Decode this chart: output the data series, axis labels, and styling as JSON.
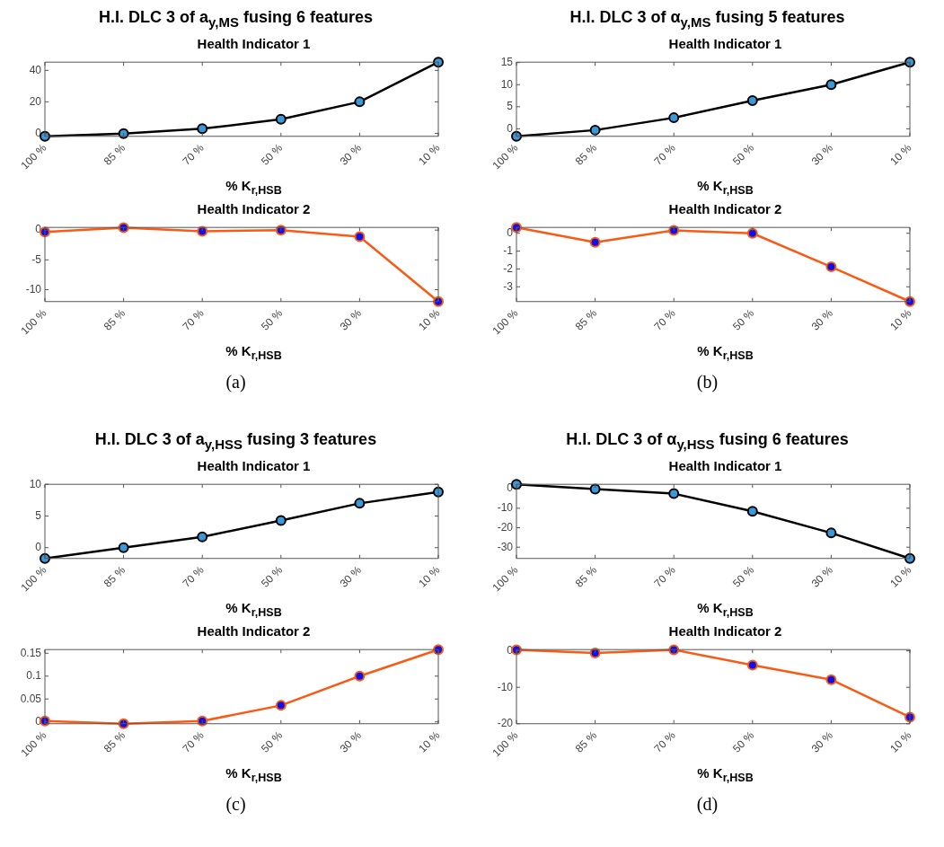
{
  "chart_data": [
    {
      "type": "line",
      "title": "H.I. DLC 3 of  a$_{y,MS}$ fusing 6 features",
      "subtitle": "Health Indicator 1",
      "xlabel": "% K$_{r,HSB}$",
      "categories": [
        "100 %",
        "85 %",
        "70 %",
        "50 %",
        "30 %",
        "10 %"
      ],
      "series": [
        {
          "color": "#000000",
          "values": [
            -1.9,
            -0.2,
            2.9,
            8.9,
            20,
            45.2
          ]
        }
      ],
      "ylim": [
        -1.9,
        45.2
      ],
      "yticks": [
        0,
        20,
        40
      ],
      "grid": false,
      "legend": false,
      "marker": "circle",
      "line_style": "solid"
    },
    {
      "type": "line",
      "title": "Health Indicator 2",
      "xlabel": "% K$_{r,HSB}$",
      "annotations": [
        "(a)"
      ],
      "categories": [
        "100 %",
        "85 %",
        "70 %",
        "50 %",
        "30 %",
        "10 %"
      ],
      "series": [
        {
          "color": "#fa5a14",
          "values": [
            -0.3,
            0.4,
            -0.2,
            0,
            -1.1,
            -12
          ]
        }
      ],
      "ylim": [
        -12,
        0.45
      ],
      "yticks": [
        -10,
        -5,
        0
      ],
      "grid": false,
      "legend": false,
      "marker": "circle",
      "line_style": "solid"
    },
    {
      "type": "line",
      "title": "H.I. DLC 3 of  α$_{y,MS}$ fusing 5 features",
      "subtitle": "Health Indicator 1",
      "xlabel": "% K$_{r,HSB}$",
      "categories": [
        "100 %",
        "85 %",
        "70 %",
        "50 %",
        "30 %",
        "10 %"
      ],
      "series": [
        {
          "color": "#000000",
          "values": [
            -1.7,
            -0.3,
            2.5,
            6.4,
            10,
            15.1
          ]
        }
      ],
      "ylim": [
        -1.7,
        15.1
      ],
      "yticks": [
        0,
        5,
        10,
        15
      ],
      "grid": false,
      "legend": false,
      "marker": "circle",
      "line_style": "solid"
    },
    {
      "type": "line",
      "title": "Health Indicator 2",
      "xlabel": "% K$_{r,HSB}$",
      "annotations": [
        "(b)"
      ],
      "categories": [
        "100 %",
        "85 %",
        "70 %",
        "50 %",
        "30 %",
        "10 %"
      ],
      "series": [
        {
          "color": "#fa5a14",
          "values": [
            0.33,
            -0.5,
            0.16,
            0,
            -1.88,
            -3.83
          ]
        }
      ],
      "ylim": [
        -3.83,
        0.33
      ],
      "yticks": [
        -3,
        -2,
        -1,
        0
      ],
      "grid": false,
      "legend": false,
      "marker": "circle",
      "line_style": "solid"
    },
    {
      "type": "line",
      "title": "H.I. DLC 3 of  a$_{y,HSS}$ fusing 3 features",
      "subtitle": "Health Indicator 1",
      "xlabel": "% K$_{r,HSB}$",
      "categories": [
        "100 %",
        "85 %",
        "70 %",
        "50 %",
        "30 %",
        "10 %"
      ],
      "series": [
        {
          "color": "#000000",
          "values": [
            -1.7,
            0,
            1.7,
            4.3,
            7,
            8.8
          ]
        }
      ],
      "ylim": [
        -1.7,
        10
      ],
      "yticks": [
        0,
        5,
        10
      ],
      "grid": false,
      "legend": false,
      "marker": "circle",
      "line_style": "solid"
    },
    {
      "type": "line",
      "title": "Health Indicator 2",
      "xlabel": "% K$_{r,HSB}$",
      "annotations": [
        "(c)"
      ],
      "categories": [
        "100 %",
        "85 %",
        "70 %",
        "50 %",
        "30 %",
        "10 %"
      ],
      "series": [
        {
          "color": "#fa5a14",
          "values": [
            0.002,
            -0.004,
            0.002,
            0.036,
            0.1,
            0.158
          ]
        }
      ],
      "ylim": [
        -0.004,
        0.158
      ],
      "yticks": [
        0,
        0.05,
        0.1,
        0.15
      ],
      "grid": false,
      "legend": false,
      "marker": "circle",
      "line_style": "solid"
    },
    {
      "type": "line",
      "title": "H.I. DLC 3 of  α$_{y,HSS}$ fusing 6 features",
      "subtitle": "Health Indicator 1",
      "xlabel": "% K$_{r,HSB}$",
      "categories": [
        "100 %",
        "85 %",
        "70 %",
        "50 %",
        "30 %",
        "10 %"
      ],
      "series": [
        {
          "color": "#000000",
          "values": [
            2.3,
            -0.1,
            -2.5,
            -11.6,
            -22.7,
            -35.8
          ]
        }
      ],
      "ylim": [
        -35.8,
        2.3
      ],
      "yticks": [
        -30,
        -20,
        -10,
        0
      ],
      "grid": false,
      "legend": false,
      "marker": "circle",
      "line_style": "solid"
    },
    {
      "type": "line",
      "title": "Health Indicator 2",
      "xlabel": "% K$_{r,HSB}$",
      "annotations": [
        "(d)"
      ],
      "categories": [
        "100 %",
        "85 %",
        "70 %",
        "50 %",
        "30 %",
        "10 %"
      ],
      "series": [
        {
          "color": "#fa5a14",
          "values": [
            0.3,
            -0.6,
            0.3,
            -3.9,
            -7.9,
            -18.2
          ]
        }
      ],
      "ylim": [
        -20,
        0.35
      ],
      "yticks": [
        -20,
        -10,
        0
      ],
      "grid": false,
      "legend": false,
      "marker": "circle",
      "line_style": "solid"
    }
  ]
}
